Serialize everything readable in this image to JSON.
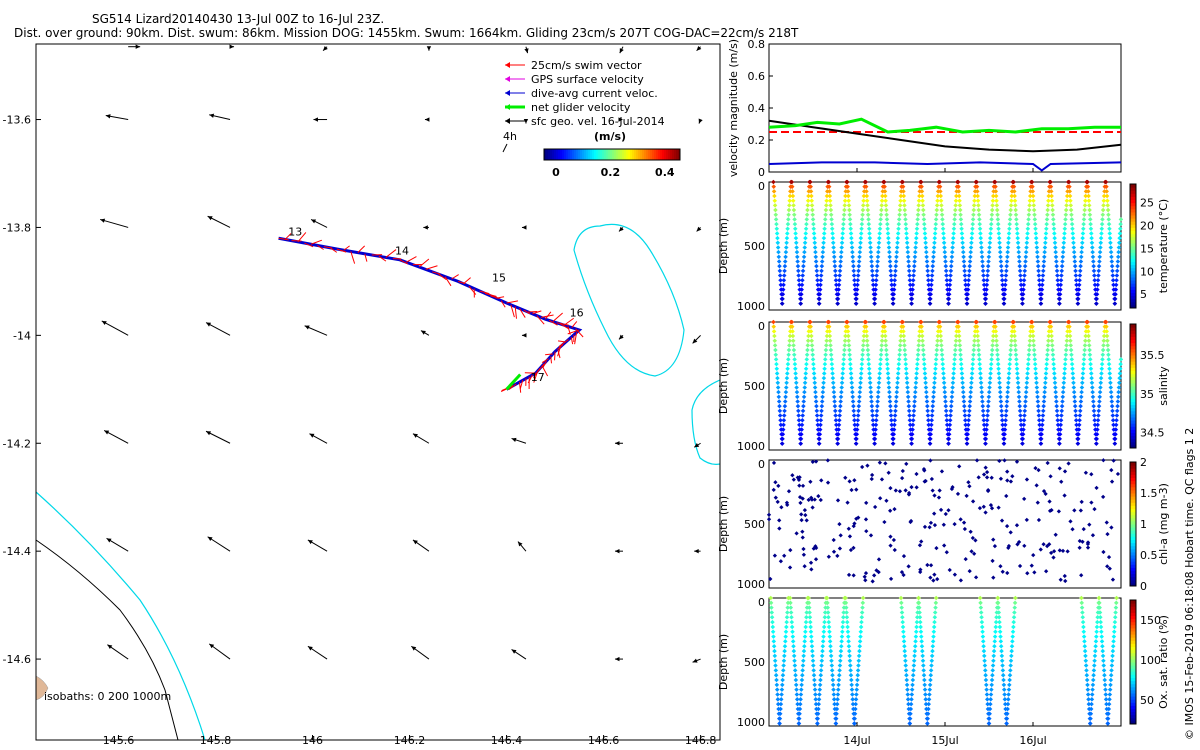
{
  "title": {
    "line1": "SG514 Lizard20140430 13-Jul 00Z to 16-Jul 23Z.",
    "line2": "Dist. over ground: 90km. Dist. swum: 86km. Mission DOG: 1455km. Swum: 1664km. Gliding 23cm/s 207T COG-DAC=22cm/s 218T"
  },
  "side_note": "© IMOS 15-Feb-2019 06:18:08 Hobart time. QC flags 1 2",
  "colors": {
    "swim": "#ff0000",
    "gps": "#e000e0",
    "dac": "#0000d0",
    "net": "#00ee00",
    "geo": "#000000",
    "isobath0": "#000000",
    "isobath1000": "#00d8e8",
    "land": "#e0b898"
  },
  "chart_data": [
    {
      "id": "map",
      "type": "scatter",
      "xlim": [
        145.43,
        146.84
      ],
      "ylim": [
        -14.75,
        -13.46
      ],
      "xticks": [
        "145.6",
        "145.8",
        "146",
        "146.2",
        "146.4",
        "146.6",
        "146.8"
      ],
      "yticks": [
        "-13.6",
        "-13.8",
        "-14",
        "-14.2",
        "-14.4",
        "-14.6"
      ],
      "legend": [
        {
          "label": "25cm/s swim vector",
          "color": "#ff0000"
        },
        {
          "label": "GPS surface velocity",
          "color": "#e000e0"
        },
        {
          "label": "dive-avg current veloc.",
          "color": "#0000d0"
        },
        {
          "label": "net glider velocity",
          "color": "#00ee00"
        },
        {
          "label": "sfc geo. vel. 16-Jul-2014",
          "color": "#000000"
        }
      ],
      "legend_position": "top-right",
      "scale_arrow_label": "4h",
      "colorbar": {
        "label": "(m/s)",
        "ticks": [
          "0",
          "0.2",
          "0.4"
        ],
        "range": [
          0,
          0.5
        ]
      },
      "isobaths_label": "isobaths: 0   200  1000m",
      "track": {
        "lon": [
          145.93,
          146.05,
          146.18,
          146.3,
          146.4,
          146.48,
          146.55,
          146.5,
          146.46,
          146.4
        ],
        "lat": [
          -13.82,
          -13.84,
          -13.86,
          -13.9,
          -13.94,
          -13.97,
          -13.99,
          -14.03,
          -14.07,
          -14.1
        ]
      },
      "day_labels": [
        {
          "text": "13",
          "lon": 145.95,
          "lat": -13.815
        },
        {
          "text": "14",
          "lon": 146.17,
          "lat": -13.85
        },
        {
          "text": "15",
          "lon": 146.37,
          "lat": -13.9
        },
        {
          "text": "16",
          "lon": 146.53,
          "lat": -13.965
        },
        {
          "text": "17",
          "lon": 146.45,
          "lat": -14.085
        }
      ],
      "geo_vectors": [
        {
          "lon": 145.62,
          "lat": -13.465,
          "u": 0.15,
          "v": 0.0
        },
        {
          "lon": 145.83,
          "lat": -13.465,
          "u": 0.05,
          "v": 0.0
        },
        {
          "lon": 146.03,
          "lat": -13.465,
          "u": -0.05,
          "v": -0.05
        },
        {
          "lon": 146.24,
          "lat": -13.465,
          "u": 0.0,
          "v": -0.05
        },
        {
          "lon": 146.44,
          "lat": -13.465,
          "u": 0.02,
          "v": -0.08
        },
        {
          "lon": 146.64,
          "lat": -13.465,
          "u": -0.04,
          "v": -0.08
        },
        {
          "lon": 146.8,
          "lat": -13.465,
          "u": -0.05,
          "v": -0.05
        },
        {
          "lon": 145.62,
          "lat": -13.6,
          "u": -0.28,
          "v": 0.05
        },
        {
          "lon": 145.83,
          "lat": -13.6,
          "u": -0.26,
          "v": 0.06
        },
        {
          "lon": 146.03,
          "lat": -13.6,
          "u": -0.17,
          "v": 0.0
        },
        {
          "lon": 146.24,
          "lat": -13.6,
          "u": -0.05,
          "v": 0.0
        },
        {
          "lon": 146.44,
          "lat": -13.6,
          "u": 0.0,
          "v": -0.05
        },
        {
          "lon": 146.64,
          "lat": -13.6,
          "u": 0.0,
          "v": 0.0
        },
        {
          "lon": 146.8,
          "lat": -13.6,
          "u": -0.02,
          "v": -0.05
        },
        {
          "lon": 145.62,
          "lat": -13.8,
          "u": -0.35,
          "v": 0.1
        },
        {
          "lon": 145.83,
          "lat": -13.8,
          "u": -0.28,
          "v": 0.14
        },
        {
          "lon": 146.03,
          "lat": -13.8,
          "u": -0.2,
          "v": 0.1
        },
        {
          "lon": 146.24,
          "lat": -13.8,
          "u": -0.07,
          "v": 0.0
        },
        {
          "lon": 146.44,
          "lat": -13.8,
          "u": -0.05,
          "v": 0.0
        },
        {
          "lon": 146.64,
          "lat": -13.8,
          "u": -0.05,
          "v": -0.05
        },
        {
          "lon": 146.8,
          "lat": -13.8,
          "u": -0.05,
          "v": -0.05
        },
        {
          "lon": 145.62,
          "lat": -14.0,
          "u": -0.33,
          "v": 0.18
        },
        {
          "lon": 145.83,
          "lat": -14.0,
          "u": -0.3,
          "v": 0.16
        },
        {
          "lon": 146.03,
          "lat": -14.0,
          "u": -0.28,
          "v": 0.12
        },
        {
          "lon": 146.24,
          "lat": -14.0,
          "u": -0.1,
          "v": 0.06
        },
        {
          "lon": 146.44,
          "lat": -14.0,
          "u": -0.05,
          "v": 0.0
        },
        {
          "lon": 146.64,
          "lat": -14.0,
          "u": -0.05,
          "v": -0.05
        },
        {
          "lon": 146.8,
          "lat": -14.0,
          "u": -0.1,
          "v": -0.1
        },
        {
          "lon": 145.62,
          "lat": -14.2,
          "u": -0.3,
          "v": 0.16
        },
        {
          "lon": 145.83,
          "lat": -14.2,
          "u": -0.3,
          "v": 0.15
        },
        {
          "lon": 146.03,
          "lat": -14.2,
          "u": -0.22,
          "v": 0.12
        },
        {
          "lon": 146.24,
          "lat": -14.2,
          "u": -0.2,
          "v": 0.12
        },
        {
          "lon": 146.44,
          "lat": -14.2,
          "u": -0.18,
          "v": 0.06
        },
        {
          "lon": 146.64,
          "lat": -14.2,
          "u": -0.1,
          "v": 0.0
        },
        {
          "lon": 146.8,
          "lat": -14.2,
          "u": -0.08,
          "v": -0.05
        },
        {
          "lon": 145.62,
          "lat": -14.4,
          "u": -0.27,
          "v": 0.16
        },
        {
          "lon": 145.83,
          "lat": -14.4,
          "u": -0.28,
          "v": 0.18
        },
        {
          "lon": 146.03,
          "lat": -14.4,
          "u": -0.24,
          "v": 0.14
        },
        {
          "lon": 146.24,
          "lat": -14.4,
          "u": -0.2,
          "v": 0.14
        },
        {
          "lon": 146.44,
          "lat": -14.4,
          "u": -0.1,
          "v": 0.12
        },
        {
          "lon": 146.64,
          "lat": -14.4,
          "u": -0.1,
          "v": 0.0
        },
        {
          "lon": 146.8,
          "lat": -14.4,
          "u": -0.08,
          "v": 0.0
        },
        {
          "lon": 145.62,
          "lat": -14.6,
          "u": -0.26,
          "v": 0.18
        },
        {
          "lon": 145.83,
          "lat": -14.6,
          "u": -0.26,
          "v": 0.19
        },
        {
          "lon": 146.03,
          "lat": -14.6,
          "u": -0.24,
          "v": 0.16
        },
        {
          "lon": 146.24,
          "lat": -14.6,
          "u": -0.22,
          "v": 0.16
        },
        {
          "lon": 146.44,
          "lat": -14.6,
          "u": -0.18,
          "v": 0.12
        },
        {
          "lon": 146.64,
          "lat": -14.6,
          "u": -0.1,
          "v": 0.0
        },
        {
          "lon": 146.8,
          "lat": -14.6,
          "u": -0.1,
          "v": -0.04
        }
      ]
    },
    {
      "id": "velocity",
      "type": "line",
      "ylabel": "velocity magnitude (m/s)",
      "ylim": [
        0,
        0.8
      ],
      "yticks": [
        "0",
        "0.2",
        "0.4",
        "0.6",
        "0.8"
      ],
      "xlim": [
        0,
        4
      ],
      "xtick_labels": [
        "14Jul",
        "15Jul",
        "16Jul"
      ],
      "xtick_values": [
        1,
        2,
        3
      ],
      "series": [
        {
          "color": "#ff0000",
          "style": "dashed",
          "x": [
            0,
            4
          ],
          "values": [
            0.25,
            0.25
          ]
        },
        {
          "color": "#000000",
          "style": "solid",
          "x": [
            0,
            0.5,
            1,
            1.5,
            2,
            2.5,
            3,
            3.5,
            4
          ],
          "values": [
            0.32,
            0.28,
            0.24,
            0.2,
            0.16,
            0.14,
            0.13,
            0.14,
            0.17
          ]
        },
        {
          "color": "#0000d0",
          "style": "solid",
          "x": [
            0,
            0.6,
            1.2,
            1.8,
            2.4,
            3.0,
            3.1,
            3.2,
            4
          ],
          "values": [
            0.05,
            0.06,
            0.06,
            0.05,
            0.06,
            0.05,
            0.01,
            0.05,
            0.06
          ]
        },
        {
          "color": "#00ee00",
          "style": "solid",
          "x": [
            0,
            0.3,
            0.55,
            0.8,
            1.05,
            1.35,
            1.6,
            1.9,
            2.2,
            2.5,
            2.8,
            3.1,
            3.4,
            3.7,
            4
          ],
          "values": [
            0.28,
            0.29,
            0.31,
            0.3,
            0.33,
            0.25,
            0.26,
            0.28,
            0.25,
            0.26,
            0.25,
            0.27,
            0.27,
            0.28,
            0.28
          ]
        }
      ]
    },
    {
      "id": "temperature",
      "type": "scatter",
      "ylabel": "Depth (m)",
      "yticks": [
        "0",
        "500",
        "1000"
      ],
      "ylim": [
        1000,
        0
      ],
      "cbar_label": "temperature (°C)",
      "cbar_ticks": [
        "5",
        "10",
        "15",
        "20",
        "25"
      ],
      "cbar_range": [
        2,
        29
      ],
      "dives": 19,
      "surface_value": 28,
      "bottom_value": 4,
      "max_depth": 950
    },
    {
      "id": "salinity",
      "type": "scatter",
      "ylabel": "Depth (m)",
      "yticks": [
        "0",
        "500",
        "1000"
      ],
      "ylim": [
        1000,
        0
      ],
      "cbar_label": "salinity",
      "cbar_ticks": [
        "34.5",
        "35",
        "35.5"
      ],
      "cbar_range": [
        34.3,
        35.9
      ],
      "dives": 19,
      "surface_value": 35.6,
      "bottom_value": 34.45,
      "max_depth": 950
    },
    {
      "id": "chla",
      "type": "scatter",
      "ylabel": "Depth (m)",
      "yticks": [
        "0",
        "500",
        "1000"
      ],
      "ylim": [
        1000,
        0
      ],
      "cbar_label": "chl-a (mg m-3)",
      "cbar_ticks": [
        "0",
        "0.5",
        "1",
        "1.5",
        "2"
      ],
      "cbar_range": [
        0,
        2
      ],
      "dives": 19,
      "value": 0.02,
      "max_depth": 950
    },
    {
      "id": "oxygen",
      "type": "scatter",
      "ylabel": "Depth (m)",
      "yticks": [
        "0",
        "500",
        "1000"
      ],
      "ylim": [
        1000,
        0
      ],
      "xtick_labels": [
        "14Jul",
        "15Jul",
        "16Jul"
      ],
      "xtick_values": [
        1,
        2,
        3
      ],
      "cbar_label": "Ox. sat. ratio (%)",
      "cbar_ticks": [
        "50",
        "100",
        "150"
      ],
      "cbar_range": [
        20,
        175
      ],
      "dive_starts": [
        0.02,
        0.24,
        0.45,
        0.66,
        0.87,
        1.5,
        1.7,
        2.4,
        2.6,
        3.55,
        3.75
      ],
      "surface_value": 105,
      "bottom_value": 55,
      "max_depth": 980
    }
  ]
}
